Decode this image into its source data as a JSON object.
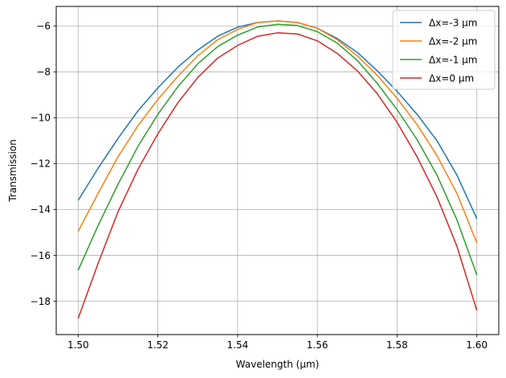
{
  "chart_data": {
    "type": "line",
    "title": "",
    "xlabel": "Wavelength (μm)",
    "ylabel": "Transmission",
    "xlim": [
      1.4945,
      1.6055
    ],
    "ylim": [
      -19.45,
      -5.15
    ],
    "xticks": [
      1.5,
      1.52,
      1.54,
      1.56,
      1.58,
      1.6
    ],
    "xtick_labels": [
      "1.50",
      "1.52",
      "1.54",
      "1.56",
      "1.58",
      "1.60"
    ],
    "yticks": [
      -18,
      -16,
      -14,
      -12,
      -10,
      -8,
      -6
    ],
    "ytick_labels": [
      "−18",
      "−16",
      "−14",
      "−12",
      "−10",
      "−8",
      "−6"
    ],
    "grid": true,
    "legend_position": "top-right",
    "x": [
      1.5,
      1.505,
      1.51,
      1.515,
      1.52,
      1.525,
      1.53,
      1.535,
      1.54,
      1.545,
      1.55,
      1.555,
      1.56,
      1.565,
      1.57,
      1.575,
      1.58,
      1.585,
      1.59,
      1.595,
      1.6
    ],
    "series": [
      {
        "name": "Δx=-3 μm",
        "color": "#1f77b4",
        "values": [
          -13.6,
          -12.2,
          -10.9,
          -9.7,
          -8.7,
          -7.8,
          -7.05,
          -6.45,
          -6.05,
          -5.85,
          -5.78,
          -5.85,
          -6.1,
          -6.55,
          -7.15,
          -7.95,
          -8.85,
          -9.85,
          -11.0,
          -12.5,
          -14.4
        ]
      },
      {
        "name": "Δx=-2 μm",
        "color": "#ff7f0e",
        "values": [
          -14.95,
          -13.3,
          -11.7,
          -10.35,
          -9.2,
          -8.2,
          -7.3,
          -6.6,
          -6.15,
          -5.85,
          -5.78,
          -5.85,
          -6.1,
          -6.6,
          -7.3,
          -8.15,
          -9.15,
          -10.3,
          -11.65,
          -13.3,
          -15.45
        ]
      },
      {
        "name": "Δx=-1 μm",
        "color": "#2ca02c",
        "values": [
          -16.65,
          -14.7,
          -12.9,
          -11.25,
          -9.85,
          -8.65,
          -7.65,
          -6.9,
          -6.4,
          -6.05,
          -5.93,
          -5.98,
          -6.25,
          -6.75,
          -7.5,
          -8.5,
          -9.65,
          -10.95,
          -12.5,
          -14.45,
          -16.85
        ]
      },
      {
        "name": "Δx=0 μm",
        "color": "#d62728",
        "values": [
          -18.75,
          -16.35,
          -14.1,
          -12.25,
          -10.7,
          -9.35,
          -8.25,
          -7.4,
          -6.85,
          -6.45,
          -6.3,
          -6.35,
          -6.65,
          -7.2,
          -7.95,
          -8.95,
          -10.2,
          -11.7,
          -13.45,
          -15.6,
          -18.4
        ]
      }
    ]
  }
}
